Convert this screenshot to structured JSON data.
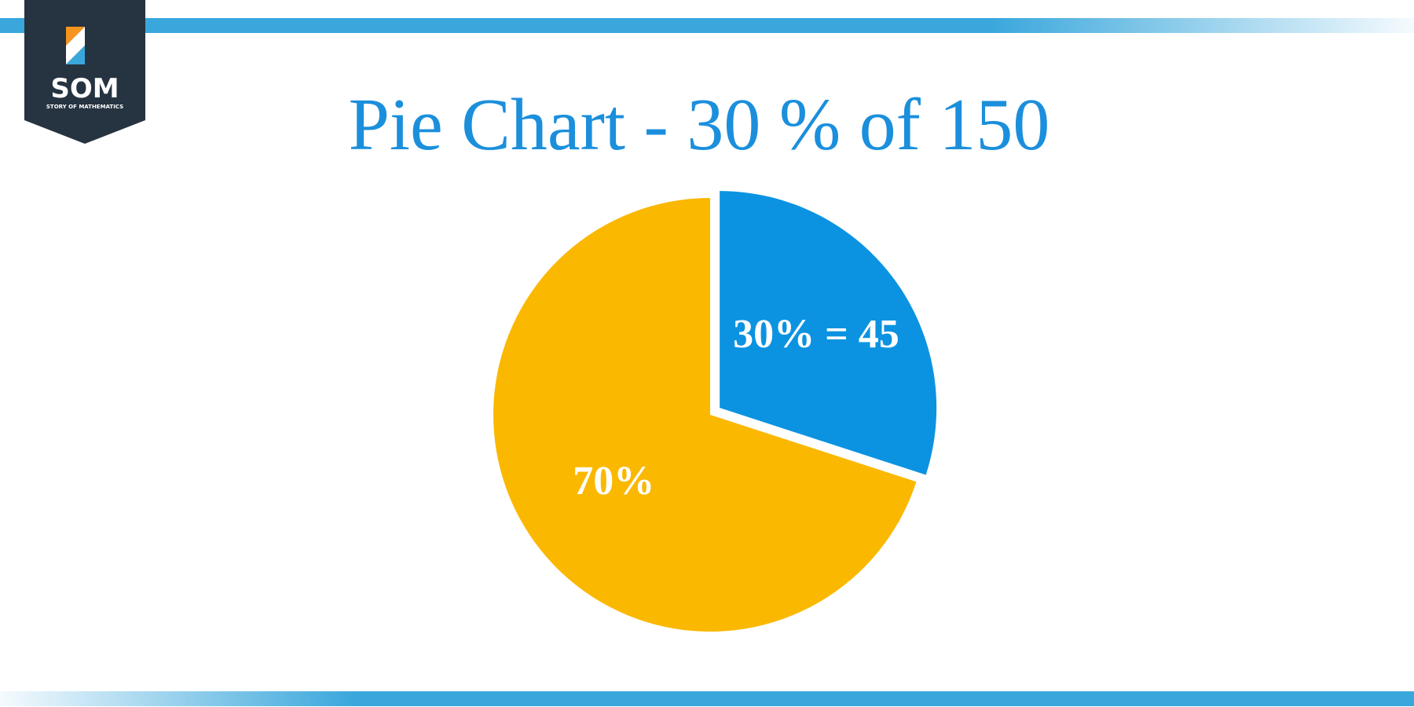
{
  "logo": {
    "name": "SOM",
    "tagline": "STORY OF MATHEMATICS"
  },
  "chart_data": {
    "type": "pie",
    "title": "Pie Chart - 30 % of 150",
    "values": [
      30,
      70
    ],
    "value_labels": [
      "30% = 45",
      "70%"
    ],
    "colors": [
      "#0b93e1",
      "#fbb800"
    ],
    "exploded": [
      true,
      false
    ]
  }
}
